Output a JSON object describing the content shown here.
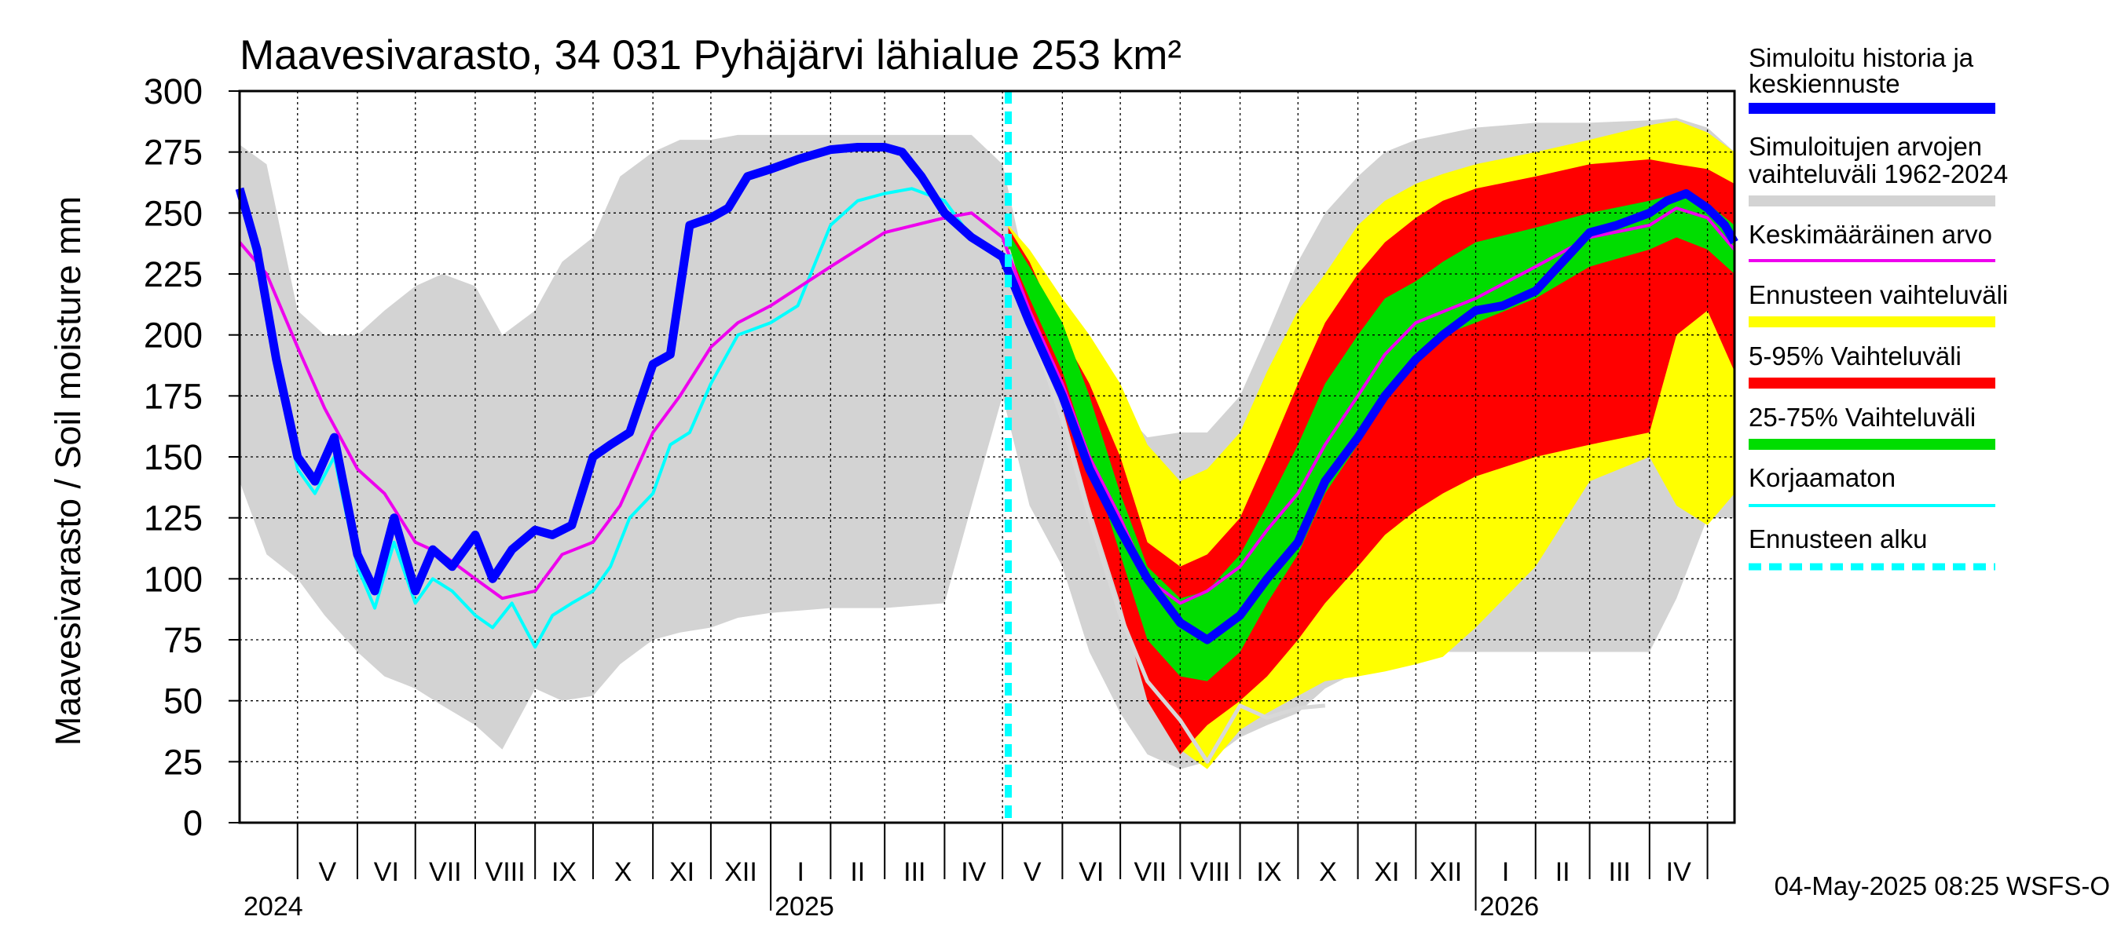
{
  "chart_data": {
    "type": "area",
    "title": "Maavesivarasto, 34 031 Pyhäjärvi lähialue 253 km²",
    "ylabel": "Maavesivarasto / Soil moisture   mm",
    "ylim": [
      0,
      300
    ],
    "yticks": [
      "0",
      "25",
      "50",
      "75",
      "100",
      "125",
      "150",
      "175",
      "200",
      "225",
      "250",
      "275",
      "300"
    ],
    "xlim": [
      "2024-04-01",
      "2026-05-15"
    ],
    "month_labels": [
      "V",
      "VI",
      "VII",
      "VIII",
      "IX",
      "X",
      "XI",
      "XII",
      "I",
      "II",
      "III",
      "IV",
      "V",
      "VI",
      "VII",
      "VIII",
      "IX",
      "X",
      "XI",
      "XII",
      "I",
      "II",
      "III",
      "IV"
    ],
    "year_labels": [
      "2024",
      "2025",
      "2026"
    ],
    "forecast_start": "2025-05-04",
    "timestamp": "04-May-2025 08:25 WSFS-O",
    "grid": true,
    "legend_position": "right",
    "legend": [
      {
        "label": "Simuloitu historia ja keskiennuste",
        "color": "#0000ff"
      },
      {
        "label": "Simuloitujen arvojen vaihteluväli 1962-2024",
        "color": "#d3d3d3"
      },
      {
        "label": "Keskimääräinen arvo",
        "color": "#ee00ee"
      },
      {
        "label": "Ennusteen vaihteluväli",
        "color": "#ffff00"
      },
      {
        "label": "5-95% Vaihteluväli",
        "color": "#ff0000"
      },
      {
        "label": "25-75% Vaihteluväli",
        "color": "#00dd00"
      },
      {
        "label": "Korjaamaton",
        "color": "#00ffff"
      },
      {
        "label": "Ennusteen alku",
        "color": "#00ffff"
      }
    ],
    "series": {
      "hist_band": {
        "x": [
          "2024-04-01",
          "2024-04-15",
          "2024-05-01",
          "2024-05-15",
          "2024-06-01",
          "2024-06-15",
          "2024-07-01",
          "2024-07-15",
          "2024-08-01",
          "2024-08-15",
          "2024-09-01",
          "2024-09-15",
          "2024-10-01",
          "2024-10-15",
          "2024-11-01",
          "2024-11-15",
          "2024-12-01",
          "2024-12-15",
          "2025-01-01",
          "2025-02-01",
          "2025-03-01",
          "2025-04-01",
          "2025-04-15",
          "2025-05-01",
          "2025-05-15",
          "2025-06-01",
          "2025-06-15",
          "2025-07-01",
          "2025-07-15",
          "2025-08-01",
          "2025-08-15",
          "2025-09-01",
          "2025-09-15",
          "2025-10-01",
          "2025-10-15",
          "2025-11-01",
          "2025-11-15",
          "2025-12-01",
          "2026-01-01",
          "2026-02-01",
          "2026-03-01",
          "2026-04-01",
          "2026-04-15",
          "2026-05-01",
          "2026-05-15"
        ],
        "low": [
          140,
          110,
          100,
          85,
          70,
          60,
          55,
          48,
          40,
          30,
          55,
          50,
          52,
          65,
          75,
          78,
          80,
          84,
          86,
          88,
          88,
          90,
          130,
          175,
          130,
          105,
          70,
          45,
          28,
          22,
          25,
          35,
          40,
          45,
          55,
          62,
          66,
          70,
          70,
          70,
          70,
          70,
          92,
          125,
          125
        ],
        "high": [
          278,
          270,
          210,
          200,
          200,
          210,
          220,
          225,
          220,
          200,
          210,
          230,
          240,
          265,
          275,
          280,
          280,
          282,
          282,
          282,
          282,
          282,
          282,
          270,
          220,
          195,
          180,
          170,
          158,
          160,
          160,
          175,
          200,
          230,
          250,
          265,
          275,
          280,
          285,
          287,
          287,
          288,
          289,
          285,
          275
        ]
      },
      "fc_full": {
        "x": [
          "2025-05-04",
          "2025-05-15",
          "2025-06-01",
          "2025-06-15",
          "2025-07-01",
          "2025-07-15",
          "2025-08-01",
          "2025-08-15",
          "2025-09-01",
          "2025-09-15",
          "2025-10-01",
          "2025-10-15",
          "2025-11-01",
          "2025-11-15",
          "2025-12-01",
          "2025-12-15",
          "2026-01-01",
          "2026-02-01",
          "2026-03-01",
          "2026-04-01",
          "2026-04-15",
          "2026-05-01",
          "2026-05-15"
        ],
        "low": [
          238,
          215,
          175,
          140,
          100,
          60,
          30,
          22,
          38,
          45,
          52,
          58,
          60,
          62,
          65,
          68,
          80,
          105,
          140,
          150,
          130,
          122,
          135
        ],
        "high": [
          245,
          235,
          215,
          200,
          180,
          155,
          140,
          145,
          160,
          185,
          210,
          225,
          245,
          255,
          262,
          266,
          270,
          275,
          280,
          286,
          288,
          283,
          275
        ]
      },
      "fc_p5_95": {
        "x": [
          "2025-05-04",
          "2025-05-15",
          "2025-06-01",
          "2025-06-15",
          "2025-07-01",
          "2025-07-15",
          "2025-08-01",
          "2025-08-15",
          "2025-09-01",
          "2025-09-15",
          "2025-10-01",
          "2025-10-15",
          "2025-11-01",
          "2025-11-15",
          "2025-12-01",
          "2025-12-15",
          "2026-01-01",
          "2026-02-01",
          "2026-03-01",
          "2026-04-01",
          "2026-04-15",
          "2026-05-01",
          "2026-05-15"
        ],
        "low": [
          236,
          210,
          170,
          130,
          90,
          50,
          28,
          40,
          50,
          60,
          75,
          90,
          105,
          118,
          128,
          135,
          142,
          150,
          155,
          160,
          200,
          210,
          185
        ],
        "high": [
          244,
          230,
          200,
          180,
          150,
          115,
          105,
          110,
          125,
          150,
          180,
          205,
          225,
          238,
          248,
          255,
          260,
          265,
          270,
          272,
          270,
          268,
          262
        ]
      },
      "fc_p25_75": {
        "x": [
          "2025-05-04",
          "2025-05-15",
          "2025-06-01",
          "2025-06-15",
          "2025-07-01",
          "2025-07-15",
          "2025-08-01",
          "2025-08-15",
          "2025-09-01",
          "2025-09-15",
          "2025-10-01",
          "2025-10-15",
          "2025-11-01",
          "2025-11-15",
          "2025-12-01",
          "2025-12-15",
          "2026-01-01",
          "2026-02-01",
          "2026-03-01",
          "2026-04-01",
          "2026-04-15",
          "2026-05-01",
          "2026-05-15"
        ],
        "low": [
          235,
          215,
          185,
          150,
          110,
          75,
          60,
          58,
          70,
          90,
          110,
          135,
          155,
          175,
          190,
          200,
          205,
          215,
          228,
          235,
          240,
          235,
          225
        ],
        "high": [
          242,
          228,
          205,
          175,
          135,
          105,
          92,
          95,
          110,
          130,
          155,
          180,
          200,
          215,
          222,
          230,
          238,
          244,
          250,
          255,
          258,
          254,
          245
        ]
      },
      "simulated": {
        "x": [
          "2024-04-01",
          "2024-04-10",
          "2024-04-20",
          "2024-05-01",
          "2024-05-10",
          "2024-05-20",
          "2024-06-01",
          "2024-06-10",
          "2024-06-20",
          "2024-07-01",
          "2024-07-10",
          "2024-07-20",
          "2024-08-01",
          "2024-08-10",
          "2024-08-20",
          "2024-09-01",
          "2024-09-10",
          "2024-09-20",
          "2024-10-01",
          "2024-10-10",
          "2024-10-20",
          "2024-11-01",
          "2024-11-10",
          "2024-11-20",
          "2024-12-01",
          "2024-12-10",
          "2024-12-20",
          "2025-01-01",
          "2025-01-15",
          "2025-02-01",
          "2025-02-15",
          "2025-03-01",
          "2025-03-10",
          "2025-03-20",
          "2025-04-01",
          "2025-04-15",
          "2025-05-01",
          "2025-05-15",
          "2025-06-01",
          "2025-06-15",
          "2025-07-01",
          "2025-07-15",
          "2025-08-01",
          "2025-08-15",
          "2025-09-01",
          "2025-09-15",
          "2025-10-01",
          "2025-10-15",
          "2025-11-01",
          "2025-11-15",
          "2025-12-01",
          "2025-12-15",
          "2026-01-01",
          "2026-01-15",
          "2026-02-01",
          "2026-02-15",
          "2026-03-01",
          "2026-03-15",
          "2026-04-01",
          "2026-04-10",
          "2026-04-20",
          "2026-05-01",
          "2026-05-10",
          "2026-05-15"
        ],
        "y": [
          260,
          235,
          190,
          150,
          140,
          158,
          110,
          95,
          125,
          95,
          112,
          105,
          118,
          100,
          112,
          120,
          118,
          122,
          150,
          155,
          160,
          188,
          192,
          245,
          248,
          252,
          265,
          268,
          272,
          276,
          277,
          277,
          275,
          265,
          250,
          240,
          232,
          205,
          175,
          145,
          120,
          100,
          82,
          75,
          85,
          100,
          115,
          140,
          158,
          175,
          190,
          200,
          210,
          212,
          218,
          230,
          242,
          245,
          250,
          255,
          258,
          252,
          245,
          238
        ]
      },
      "mean": {
        "x": [
          "2024-04-01",
          "2024-04-15",
          "2024-05-01",
          "2024-05-15",
          "2024-06-01",
          "2024-06-15",
          "2024-07-01",
          "2024-07-15",
          "2024-08-01",
          "2024-08-15",
          "2024-09-01",
          "2024-09-15",
          "2024-10-01",
          "2024-10-15",
          "2024-11-01",
          "2024-11-15",
          "2024-12-01",
          "2024-12-15",
          "2025-01-01",
          "2025-02-01",
          "2025-03-01",
          "2025-04-01",
          "2025-04-15",
          "2025-05-01",
          "2025-05-15",
          "2025-06-01",
          "2025-06-15",
          "2025-07-01",
          "2025-07-15",
          "2025-08-01",
          "2025-08-15",
          "2025-09-01",
          "2025-09-15",
          "2025-10-01",
          "2025-10-15",
          "2025-11-01",
          "2025-11-15",
          "2025-12-01",
          "2026-01-01",
          "2026-02-01",
          "2026-03-01",
          "2026-04-01",
          "2026-04-15",
          "2026-05-01",
          "2026-05-15"
        ],
        "y": [
          238,
          225,
          195,
          170,
          145,
          135,
          115,
          110,
          100,
          92,
          95,
          110,
          115,
          130,
          160,
          175,
          195,
          205,
          212,
          228,
          242,
          248,
          250,
          240,
          210,
          180,
          150,
          125,
          100,
          90,
          95,
          105,
          120,
          135,
          155,
          175,
          192,
          205,
          215,
          228,
          240,
          245,
          252,
          248,
          235
        ]
      },
      "uncorrected": {
        "x": [
          "2024-04-01",
          "2024-04-10",
          "2024-04-20",
          "2024-05-01",
          "2024-05-10",
          "2024-05-20",
          "2024-06-01",
          "2024-06-10",
          "2024-06-20",
          "2024-07-01",
          "2024-07-10",
          "2024-07-20",
          "2024-08-01",
          "2024-08-10",
          "2024-08-20",
          "2024-09-01",
          "2024-09-10",
          "2024-09-20",
          "2024-10-01",
          "2024-10-10",
          "2024-10-20",
          "2024-11-01",
          "2024-11-10",
          "2024-11-20",
          "2024-12-01",
          "2024-12-15",
          "2025-01-01",
          "2025-01-15",
          "2025-02-01",
          "2025-02-15",
          "2025-03-01",
          "2025-03-15",
          "2025-04-01",
          "2025-04-15",
          "2025-05-01"
        ],
        "y": [
          258,
          230,
          185,
          145,
          135,
          150,
          105,
          88,
          115,
          90,
          100,
          95,
          85,
          80,
          90,
          72,
          85,
          90,
          95,
          105,
          125,
          135,
          155,
          160,
          180,
          200,
          205,
          212,
          245,
          255,
          258,
          260,
          255,
          240,
          232
        ]
      },
      "hist_min_line": {
        "x": [
          "2025-05-04",
          "2025-05-15",
          "2025-06-01",
          "2025-06-15",
          "2025-07-01",
          "2025-07-15",
          "2025-08-01",
          "2025-08-15",
          "2025-09-01",
          "2025-09-15",
          "2025-10-01",
          "2025-10-15"
        ],
        "y": [
          235,
          205,
          165,
          125,
          85,
          58,
          42,
          25,
          48,
          43,
          47,
          48
        ]
      }
    }
  }
}
